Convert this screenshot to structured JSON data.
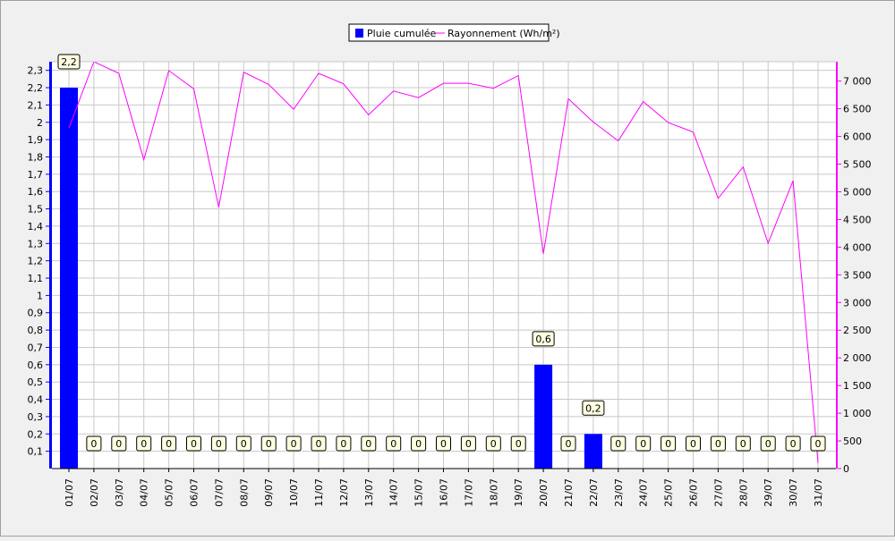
{
  "chart_data": {
    "type": "bar+line",
    "categories": [
      "01/07",
      "02/07",
      "03/07",
      "04/07",
      "05/07",
      "06/07",
      "07/07",
      "08/07",
      "09/07",
      "10/07",
      "11/07",
      "12/07",
      "13/07",
      "14/07",
      "15/07",
      "16/07",
      "17/07",
      "18/07",
      "19/07",
      "20/07",
      "21/07",
      "22/07",
      "23/07",
      "24/07",
      "25/07",
      "26/07",
      "27/07",
      "28/07",
      "29/07",
      "30/07",
      "31/07"
    ],
    "series": [
      {
        "name": "Pluie cumulée",
        "type": "bar",
        "axis": "left",
        "color": "#0000ff",
        "values": [
          2.2,
          0,
          0,
          0,
          0,
          0,
          0,
          0,
          0,
          0,
          0,
          0,
          0,
          0,
          0,
          0,
          0,
          0,
          0,
          0.6,
          0,
          0.2,
          0,
          0,
          0,
          0,
          0,
          0,
          0,
          0,
          0
        ],
        "labels": [
          "2,2",
          "0",
          "0",
          "0",
          "0",
          "0",
          "0",
          "0",
          "0",
          "0",
          "0",
          "0",
          "0",
          "0",
          "0",
          "0",
          "0",
          "0",
          "0",
          "0,6",
          "0",
          "0,2",
          "0",
          "0",
          "0",
          "0",
          "0",
          "0",
          "0",
          "0",
          "0"
        ]
      },
      {
        "name": "Rayonnement (Wh/m²)",
        "type": "line",
        "axis": "right",
        "color": "#ff00ff",
        "values": [
          6150,
          7350,
          7140,
          5580,
          7190,
          6860,
          4720,
          7160,
          6940,
          6490,
          7140,
          6950,
          6390,
          6820,
          6700,
          6960,
          6960,
          6870,
          7100,
          3880,
          6680,
          6260,
          5920,
          6630,
          6250,
          6080,
          4880,
          5450,
          4070,
          5200,
          100
        ]
      }
    ],
    "y_left": {
      "ylim": [
        0,
        2.35
      ],
      "ticks": [
        0.1,
        0.2,
        0.3,
        0.4,
        0.5,
        0.6,
        0.7,
        0.8,
        0.9,
        1,
        1.1,
        1.2,
        1.3,
        1.4,
        1.5,
        1.6,
        1.7,
        1.8,
        1.9,
        2,
        2.1,
        2.2,
        2.3
      ],
      "tick_labels": [
        "0,1",
        "0,2",
        "0,3",
        "0,4",
        "0,5",
        "0,6",
        "0,7",
        "0,8",
        "0,9",
        "1",
        "1,1",
        "1,2",
        "1,3",
        "1,4",
        "1,5",
        "1,6",
        "1,7",
        "1,8",
        "1,9",
        "2",
        "2,1",
        "2,2",
        "2,3"
      ]
    },
    "y_right": {
      "ylim": [
        0,
        7350
      ],
      "ticks": [
        0,
        500,
        1000,
        1500,
        2000,
        2500,
        3000,
        3500,
        4000,
        4500,
        5000,
        5500,
        6000,
        6500,
        7000
      ],
      "tick_labels": [
        "0",
        "500",
        "1 000",
        "1 500",
        "2 000",
        "2 500",
        "3 000",
        "3 500",
        "4 000",
        "4 500",
        "5 000",
        "5 500",
        "6 000",
        "6 500",
        "7 000"
      ]
    },
    "grid": true,
    "legend": "top-center"
  }
}
